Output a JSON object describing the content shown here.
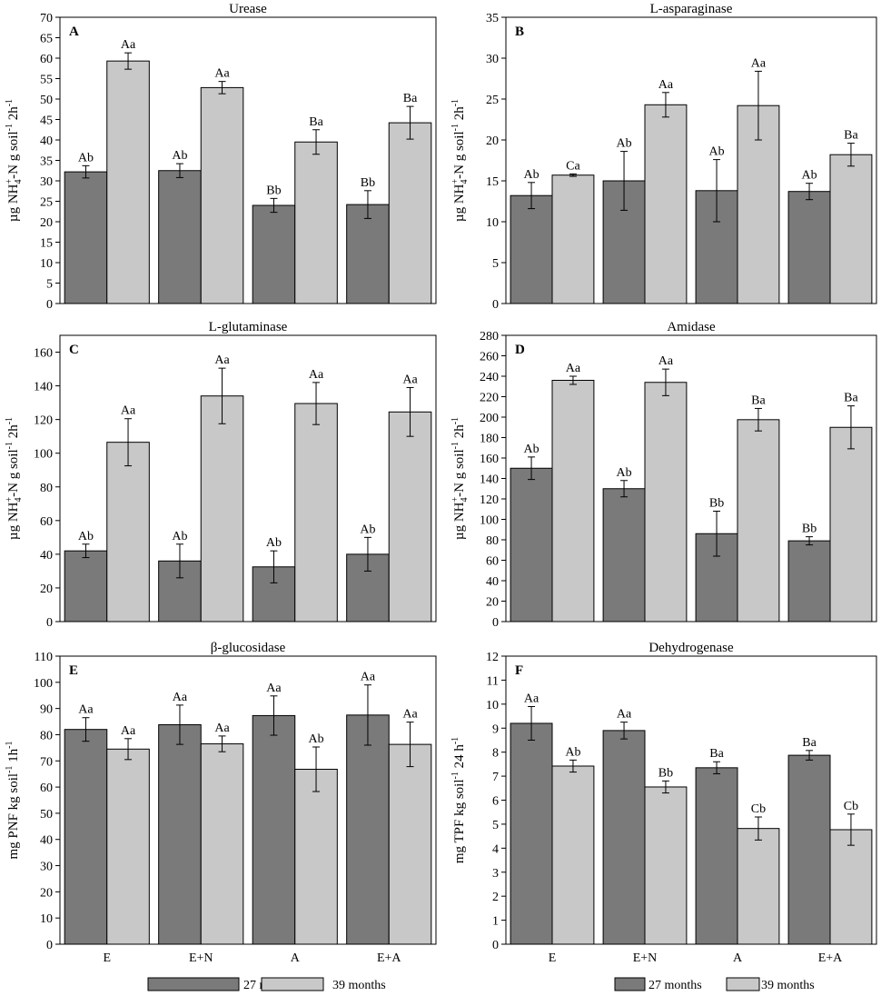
{
  "figure": {
    "legend": [
      {
        "label": "27 months",
        "color": "#7a7a7a"
      },
      {
        "label": "39 months",
        "color": "#c8c8c8"
      }
    ]
  },
  "chart_data": [
    {
      "panel": "A",
      "type": "bar",
      "title": "Urease",
      "ylabel": "µg NH4+-N g soil-1 2h-1",
      "ylabel_parts": [
        "µg NH",
        "4",
        "+",
        "-N g soil",
        "-1",
        " 2h",
        "-1"
      ],
      "categories": [
        "E",
        "E+N",
        "A",
        "E+A"
      ],
      "show_xticks": false,
      "ylim": [
        0,
        70
      ],
      "ytick_step": 5,
      "series": [
        {
          "name": "27 months",
          "values": [
            32.2,
            32.5,
            24.0,
            24.2
          ],
          "errors": [
            1.5,
            1.7,
            1.7,
            3.4
          ],
          "labels": [
            "Ab",
            "Ab",
            "Bb",
            "Bb"
          ]
        },
        {
          "name": "39 months",
          "values": [
            59.3,
            52.8,
            39.5,
            44.2
          ],
          "errors": [
            2.0,
            1.5,
            3.0,
            4.0
          ],
          "labels": [
            "Aa",
            "Aa",
            "Ba",
            "Ba"
          ]
        }
      ]
    },
    {
      "panel": "B",
      "type": "bar",
      "title": "L-asparaginase",
      "ylabel": "µg NH4+-N g soil-1 2h-1",
      "ylabel_parts": [
        "µg NH",
        "4",
        "+",
        "-N g soil",
        "-1",
        " 2h",
        "-1"
      ],
      "categories": [
        "E",
        "E+N",
        "A",
        "E+A"
      ],
      "show_xticks": false,
      "ylim": [
        0,
        35
      ],
      "ytick_step": 5,
      "series": [
        {
          "name": "27 months",
          "values": [
            13.2,
            15.0,
            13.8,
            13.7
          ],
          "errors": [
            1.6,
            3.6,
            3.8,
            1.0
          ],
          "labels": [
            "Ab",
            "Ab",
            "Ab",
            "Ab"
          ]
        },
        {
          "name": "39 months",
          "values": [
            15.7,
            24.3,
            24.2,
            18.2
          ],
          "errors": [
            0.15,
            1.5,
            4.2,
            1.4
          ],
          "labels": [
            "Ca",
            "Aa",
            "Aa",
            "Ba"
          ]
        }
      ]
    },
    {
      "panel": "C",
      "type": "bar",
      "title": "L-glutaminase",
      "ylabel": "µg NH4+-N g soil-1 2h-1",
      "ylabel_parts": [
        "µg NH",
        "4",
        "+",
        "-N g soil",
        "-1",
        " 2h",
        "-1"
      ],
      "categories": [
        "E",
        "E+N",
        "A",
        "E+A"
      ],
      "show_xticks": false,
      "ylim": [
        0,
        170
      ],
      "yticks": [
        0,
        20,
        40,
        60,
        80,
        100,
        120,
        140,
        160
      ],
      "series": [
        {
          "name": "27 months",
          "values": [
            42,
            36,
            32.5,
            40
          ],
          "errors": [
            4,
            10,
            9.5,
            10
          ],
          "labels": [
            "Ab",
            "Ab",
            "Ab",
            "Ab"
          ]
        },
        {
          "name": "39 months",
          "values": [
            106.5,
            134,
            129.5,
            124.5
          ],
          "errors": [
            14,
            16.5,
            12.5,
            14.5
          ],
          "labels": [
            "Aa",
            "Aa",
            "Aa",
            "Aa"
          ]
        }
      ]
    },
    {
      "panel": "D",
      "type": "bar",
      "title": "Amidase",
      "ylabel": "µg NH4+-N g soil-1 2h-1",
      "ylabel_parts": [
        "µg NH",
        "4",
        "+",
        "-N g soil",
        "-1",
        " 2h",
        "-1"
      ],
      "categories": [
        "E",
        "E+N",
        "A",
        "E+A"
      ],
      "show_xticks": false,
      "ylim": [
        0,
        280
      ],
      "ytick_step": 20,
      "series": [
        {
          "name": "27 months",
          "values": [
            150,
            130,
            86,
            79
          ],
          "errors": [
            11,
            8,
            22,
            4
          ],
          "labels": [
            "Ab",
            "Ab",
            "Bb",
            "Bb"
          ]
        },
        {
          "name": "39 months",
          "values": [
            236,
            234,
            197.5,
            190
          ],
          "errors": [
            4,
            13,
            11,
            21
          ],
          "labels": [
            "Aa",
            "Aa",
            "Ba",
            "Ba"
          ]
        }
      ]
    },
    {
      "panel": "E",
      "type": "bar",
      "title": "β-glucosidase",
      "ylabel": "mg PNF kg soil-1 1h-1",
      "ylabel_parts": [
        "mg PNF kg soil",
        "-1",
        " 1h",
        "-1"
      ],
      "categories": [
        "E",
        "E+N",
        "A",
        "E+A"
      ],
      "show_xticks": true,
      "ylim": [
        0,
        110
      ],
      "ytick_step": 10,
      "series": [
        {
          "name": "27 months",
          "values": [
            82,
            83.8,
            87.3,
            87.5
          ],
          "errors": [
            4.5,
            7.5,
            7.5,
            11.5
          ],
          "labels": [
            "Aa",
            "Aa",
            "Aa",
            "Aa"
          ]
        },
        {
          "name": "39 months",
          "values": [
            74.5,
            76.5,
            66.8,
            76.3
          ],
          "errors": [
            4,
            3,
            8.5,
            8.5
          ],
          "labels": [
            "Aa",
            "Aa",
            "Ab",
            "Aa"
          ]
        }
      ]
    },
    {
      "panel": "F",
      "type": "bar",
      "title": "Dehydrogenase",
      "ylabel": "mg TPF kg soil-1 24 h-1",
      "ylabel_parts": [
        "mg TPF kg soil",
        "-1",
        " 24 h",
        "-1"
      ],
      "categories": [
        "E",
        "E+N",
        "A",
        "E+A"
      ],
      "show_xticks": true,
      "ylim": [
        0,
        12
      ],
      "ytick_step": 1,
      "series": [
        {
          "name": "27 months",
          "values": [
            9.2,
            8.9,
            7.35,
            7.87
          ],
          "errors": [
            0.7,
            0.35,
            0.25,
            0.2
          ],
          "labels": [
            "Aa",
            "Aa",
            "Ba",
            "Ba"
          ]
        },
        {
          "name": "39 months",
          "values": [
            7.42,
            6.55,
            4.82,
            4.77
          ],
          "errors": [
            0.25,
            0.25,
            0.48,
            0.65
          ],
          "labels": [
            "Ab",
            "Bb",
            "Cb",
            "Cb"
          ]
        }
      ]
    }
  ]
}
